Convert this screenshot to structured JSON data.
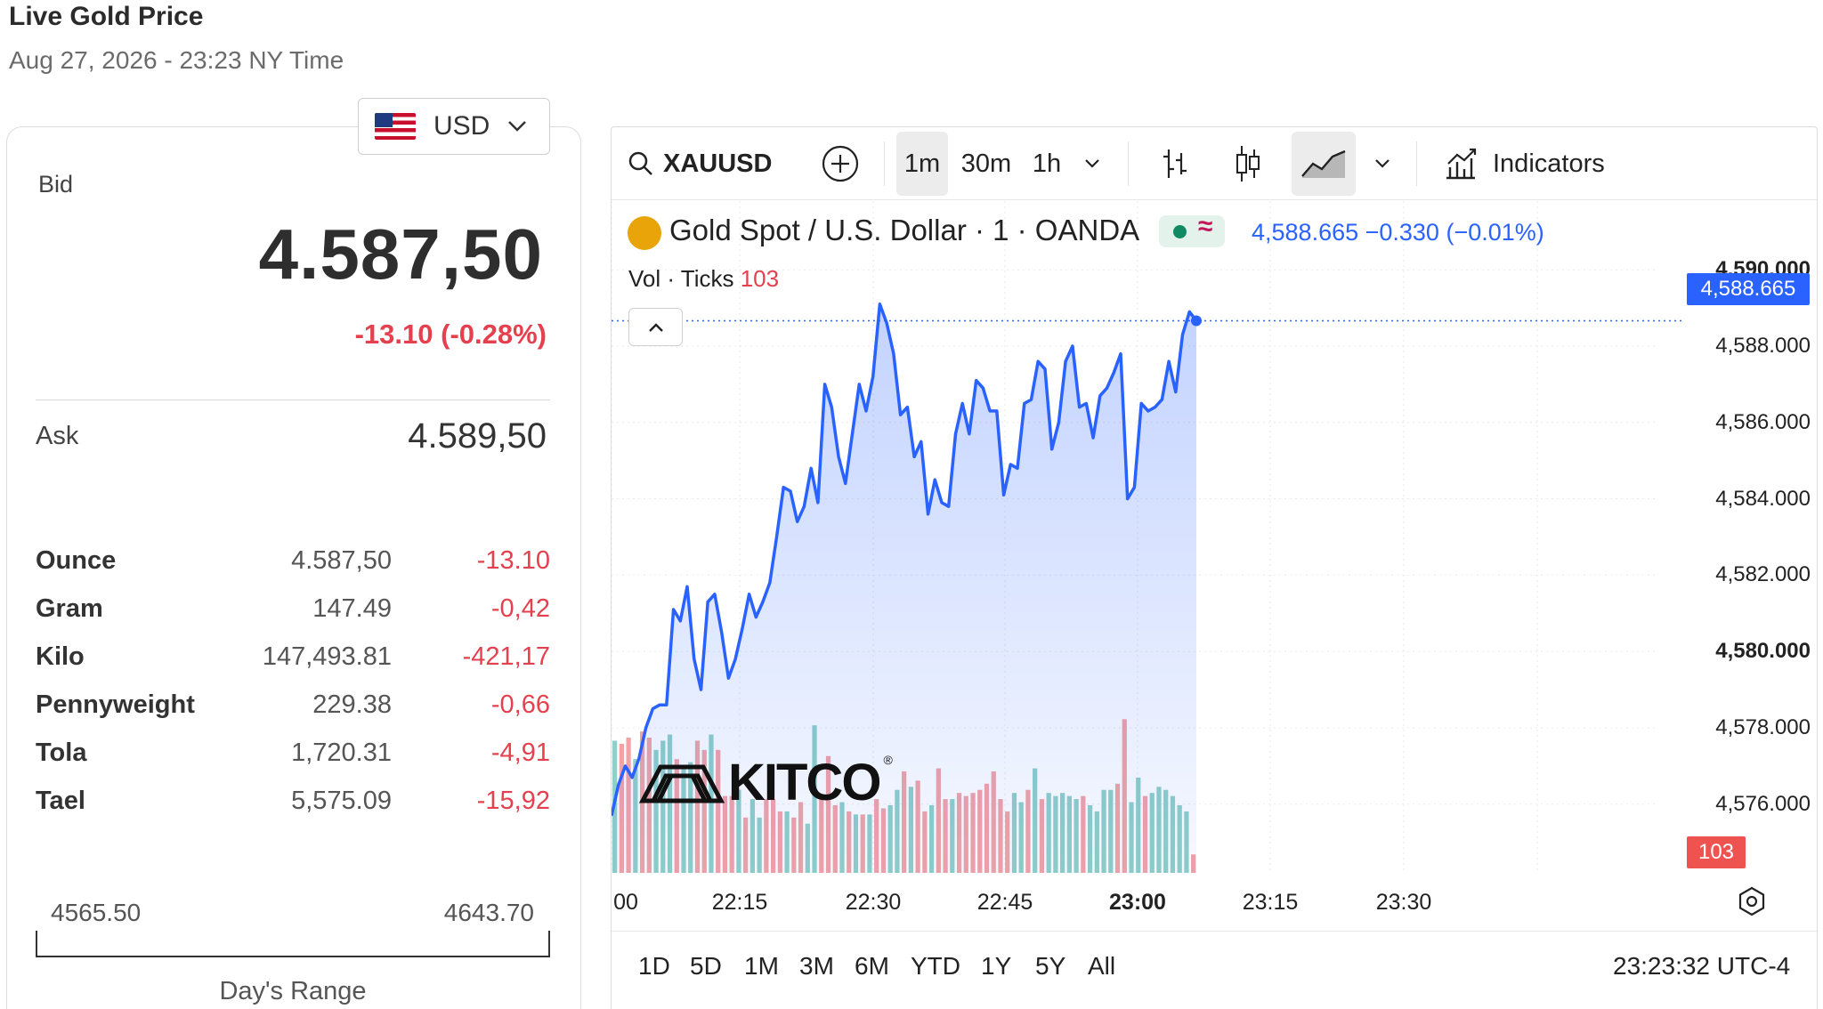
{
  "header": {
    "title": "Live Gold Price",
    "subtitle": "Aug 27, 2026 - 23:23 NY Time"
  },
  "currency": {
    "label": "USD",
    "flag_icon": "us-flag-icon"
  },
  "quote": {
    "bid_label": "Bid",
    "bid_value": "4.587,50",
    "bid_change": "-13.10 (-0.28%)",
    "ask_label": "Ask",
    "ask_value": "4.589,50"
  },
  "units": [
    {
      "name": "Ounce",
      "price": "4.587,50",
      "change": "-13.10"
    },
    {
      "name": "Gram",
      "price": "147.49",
      "change": "-0,42"
    },
    {
      "name": "Kilo",
      "price": "147,493.81",
      "change": "-421,17"
    },
    {
      "name": "Pennyweight",
      "price": "229.38",
      "change": "-0,66"
    },
    {
      "name": "Tola",
      "price": "1,720.31",
      "change": "-4,91"
    },
    {
      "name": "Tael",
      "price": "5,575.09",
      "change": "-15,92"
    }
  ],
  "day_range": {
    "low": "4565.50",
    "high": "4643.70",
    "label": "Day's Range"
  },
  "toolbar": {
    "symbol": "XAUUSD",
    "intervals": [
      "1m",
      "30m",
      "1h"
    ],
    "active_interval": "1m",
    "indicators_label": "Indicators"
  },
  "legend": {
    "title": "Gold Spot / U.S. Dollar · 1 · OANDA",
    "values": "4,588.665  −0.330 (−0.01%)",
    "vol_label": "Vol · Ticks",
    "vol_value": "103"
  },
  "price_tag": "4,588.665",
  "volume_tag": "103",
  "watermark": "KITCO",
  "range_buttons": [
    "1D",
    "5D",
    "1M",
    "3M",
    "6M",
    "YTD",
    "1Y",
    "5Y",
    "All"
  ],
  "clock": "23:23:32 UTC-4",
  "colors": {
    "line": "#2962ff",
    "up": "#26a69a",
    "down": "#ef5350",
    "negative_text": "#e5404e"
  },
  "chart_data": {
    "type": "area",
    "title": "Gold Spot / U.S. Dollar · 1 · OANDA",
    "y_axis": {
      "ticks": [
        "4,576.000",
        "4,578.000",
        "4,580.000",
        "4,582.000",
        "4,584.000",
        "4,586.000",
        "4,588.000",
        "4,590.000"
      ],
      "ylim": [
        4574.2,
        4591.8
      ]
    },
    "x_axis": {
      "ticks": [
        "00",
        "22:15",
        "22:30",
        "22:45",
        "23:00",
        "23:15",
        "23:30"
      ],
      "bold": [
        "23:00"
      ]
    },
    "grid": true,
    "series": [
      {
        "values": [
          4575.7,
          4576.5,
          4577.0,
          4576.7,
          4577.2,
          4578.0,
          4578.5,
          4578.6,
          4578.6,
          4581.1,
          4580.8,
          4581.7,
          4579.8,
          4579.0,
          4581.3,
          4581.5,
          4580.5,
          4579.3,
          4579.8,
          4580.6,
          4581.5,
          4580.9,
          4581.3,
          4581.8,
          4583.0,
          4584.3,
          4584.2,
          4583.4,
          4583.8,
          4584.8,
          4583.9,
          4587.0,
          4586.4,
          4585.1,
          4584.4,
          4585.7,
          4587.0,
          4586.3,
          4587.2,
          4589.1,
          4588.6,
          4587.8,
          4586.2,
          4586.4,
          4585.1,
          4585.5,
          4583.6,
          4584.5,
          4583.9,
          4583.8,
          4585.7,
          4586.5,
          4585.7,
          4587.1,
          4586.9,
          4586.3,
          4586.3,
          4584.1,
          4584.9,
          4584.8,
          4586.5,
          4586.6,
          4587.6,
          4587.4,
          4585.3,
          4586.0,
          4587.6,
          4588.0,
          4586.4,
          4586.5,
          4585.6,
          4586.7,
          4586.9,
          4587.3,
          4587.8,
          4584.0,
          4584.3,
          4586.5,
          4586.3,
          4586.4,
          4586.6,
          4587.6,
          4586.8,
          4588.3,
          4588.9,
          4588.665
        ]
      }
    ],
    "volume": [
      {
        "value": 43,
        "dir": "up"
      },
      {
        "value": 42,
        "dir": "down"
      },
      {
        "value": 44,
        "dir": "down"
      },
      {
        "value": 37,
        "dir": "up"
      },
      {
        "value": 46,
        "dir": "down"
      },
      {
        "value": 44,
        "dir": "down"
      },
      {
        "value": 40,
        "dir": "up"
      },
      {
        "value": 43,
        "dir": "up"
      },
      {
        "value": 45,
        "dir": "up"
      },
      {
        "value": 37,
        "dir": "down"
      },
      {
        "value": 35,
        "dir": "up"
      },
      {
        "value": 36,
        "dir": "up"
      },
      {
        "value": 43,
        "dir": "down"
      },
      {
        "value": 40,
        "dir": "down"
      },
      {
        "value": 45,
        "dir": "up"
      },
      {
        "value": 40,
        "dir": "down"
      },
      {
        "value": 25,
        "dir": "down"
      },
      {
        "value": 25,
        "dir": "down"
      },
      {
        "value": 27,
        "dir": "up"
      },
      {
        "value": 18,
        "dir": "down"
      },
      {
        "value": 24,
        "dir": "up"
      },
      {
        "value": 18,
        "dir": "up"
      },
      {
        "value": 24,
        "dir": "down"
      },
      {
        "value": 24,
        "dir": "down"
      },
      {
        "value": 20,
        "dir": "down"
      },
      {
        "value": 20,
        "dir": "up"
      },
      {
        "value": 18,
        "dir": "down"
      },
      {
        "value": 23,
        "dir": "down"
      },
      {
        "value": 16,
        "dir": "up"
      },
      {
        "value": 48,
        "dir": "up"
      },
      {
        "value": 25,
        "dir": "down"
      },
      {
        "value": 38,
        "dir": "down"
      },
      {
        "value": 22,
        "dir": "down"
      },
      {
        "value": 23,
        "dir": "up"
      },
      {
        "value": 20,
        "dir": "down"
      },
      {
        "value": 19,
        "dir": "up"
      },
      {
        "value": 19,
        "dir": "down"
      },
      {
        "value": 19,
        "dir": "up"
      },
      {
        "value": 24,
        "dir": "down"
      },
      {
        "value": 21,
        "dir": "down"
      },
      {
        "value": 22,
        "dir": "up"
      },
      {
        "value": 27,
        "dir": "up"
      },
      {
        "value": 33,
        "dir": "down"
      },
      {
        "value": 28,
        "dir": "up"
      },
      {
        "value": 30,
        "dir": "down"
      },
      {
        "value": 20,
        "dir": "down"
      },
      {
        "value": 22,
        "dir": "up"
      },
      {
        "value": 34,
        "dir": "down"
      },
      {
        "value": 24,
        "dir": "down"
      },
      {
        "value": 24,
        "dir": "up"
      },
      {
        "value": 26,
        "dir": "down"
      },
      {
        "value": 25,
        "dir": "down"
      },
      {
        "value": 26,
        "dir": "down"
      },
      {
        "value": 27,
        "dir": "down"
      },
      {
        "value": 29,
        "dir": "down"
      },
      {
        "value": 33,
        "dir": "down"
      },
      {
        "value": 24,
        "dir": "down"
      },
      {
        "value": 20,
        "dir": "down"
      },
      {
        "value": 26,
        "dir": "up"
      },
      {
        "value": 23,
        "dir": "up"
      },
      {
        "value": 27,
        "dir": "down"
      },
      {
        "value": 34,
        "dir": "up"
      },
      {
        "value": 24,
        "dir": "down"
      },
      {
        "value": 26,
        "dir": "up"
      },
      {
        "value": 25,
        "dir": "up"
      },
      {
        "value": 26,
        "dir": "up"
      },
      {
        "value": 25,
        "dir": "up"
      },
      {
        "value": 24,
        "dir": "up"
      },
      {
        "value": 25,
        "dir": "down"
      },
      {
        "value": 22,
        "dir": "up"
      },
      {
        "value": 20,
        "dir": "up"
      },
      {
        "value": 27,
        "dir": "up"
      },
      {
        "value": 27,
        "dir": "up"
      },
      {
        "value": 29,
        "dir": "down"
      },
      {
        "value": 50,
        "dir": "down"
      },
      {
        "value": 23,
        "dir": "up"
      },
      {
        "value": 31,
        "dir": "up"
      },
      {
        "value": 25,
        "dir": "down"
      },
      {
        "value": 26,
        "dir": "up"
      },
      {
        "value": 28,
        "dir": "up"
      },
      {
        "value": 27,
        "dir": "up"
      },
      {
        "value": 25,
        "dir": "up"
      },
      {
        "value": 22,
        "dir": "up"
      },
      {
        "value": 20,
        "dir": "up"
      },
      {
        "value": 6,
        "dir": "down"
      }
    ]
  }
}
